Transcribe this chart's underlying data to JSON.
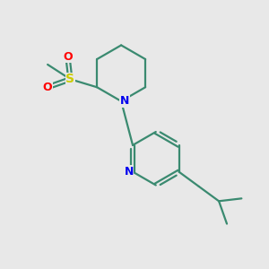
{
  "bg_color": "#e8e8e8",
  "bond_color": "#3a8a70",
  "n_color": "#0000ee",
  "s_color": "#cccc00",
  "o_color": "#ff0000",
  "line_width": 1.6,
  "figsize": [
    3.0,
    3.0
  ],
  "dpi": 100,
  "xlim": [
    0,
    10
  ],
  "ylim": [
    0,
    10
  ]
}
